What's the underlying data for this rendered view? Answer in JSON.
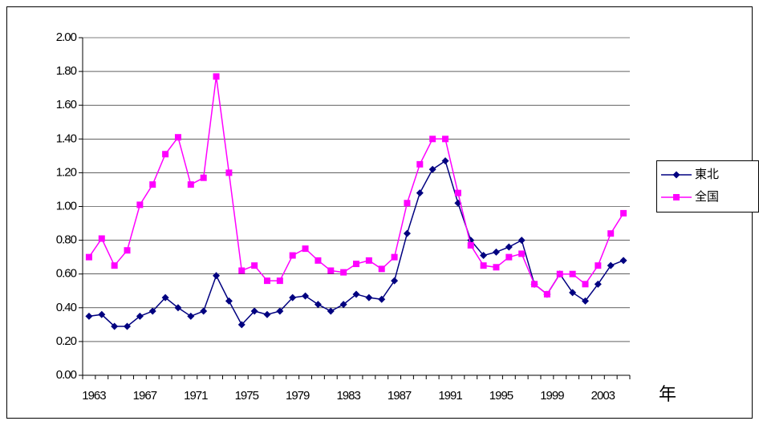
{
  "chart_data": {
    "type": "line",
    "x_label": "年",
    "categories": [
      "1963",
      null,
      null,
      null,
      "1967",
      null,
      null,
      null,
      "1971",
      null,
      null,
      null,
      "1975",
      null,
      null,
      null,
      "1979",
      null,
      null,
      null,
      "1983",
      null,
      null,
      null,
      "1987",
      null,
      null,
      null,
      "1991",
      null,
      null,
      null,
      "1995",
      null,
      null,
      null,
      "1999",
      null,
      null,
      null,
      "2003",
      null,
      null
    ],
    "series": [
      {
        "name": "東北",
        "color": "#000080",
        "marker": "diamond",
        "values": [
          0.35,
          0.36,
          0.29,
          0.29,
          0.35,
          0.38,
          0.46,
          0.4,
          0.35,
          0.38,
          0.59,
          0.44,
          0.3,
          0.38,
          0.36,
          0.38,
          0.46,
          0.47,
          0.42,
          0.38,
          0.42,
          0.48,
          0.46,
          0.45,
          0.56,
          0.84,
          1.08,
          1.22,
          1.27,
          1.02,
          0.8,
          0.71,
          0.73,
          0.76,
          0.8,
          0.54,
          0.48,
          0.6,
          0.49,
          0.44,
          0.54,
          0.65,
          0.68
        ]
      },
      {
        "name": "全国",
        "color": "#ff00ff",
        "marker": "square",
        "values": [
          0.7,
          0.81,
          0.65,
          0.74,
          1.01,
          1.13,
          1.31,
          1.41,
          1.13,
          1.17,
          1.77,
          1.2,
          0.62,
          0.65,
          0.56,
          0.56,
          0.71,
          0.75,
          0.68,
          0.62,
          0.61,
          0.66,
          0.68,
          0.63,
          0.7,
          1.02,
          1.25,
          1.4,
          1.4,
          1.08,
          0.77,
          0.65,
          0.64,
          0.7,
          0.72,
          0.54,
          0.48,
          0.6,
          0.6,
          0.54,
          0.65,
          0.84,
          0.96
        ]
      }
    ],
    "ylim": [
      0,
      2
    ],
    "yticks": [
      {
        "value": 0,
        "label": "0.00"
      },
      {
        "value": 0.2,
        "label": "0.20"
      },
      {
        "value": 0.4,
        "label": "0.40"
      },
      {
        "value": 0.6,
        "label": "0.60"
      },
      {
        "value": 0.8,
        "label": "0.80"
      },
      {
        "value": 1,
        "label": "1.00"
      },
      {
        "value": 1.2,
        "label": "1.20"
      },
      {
        "value": 1.4,
        "label": "1.40"
      },
      {
        "value": 1.6,
        "label": "1.60"
      },
      {
        "value": 1.8,
        "label": "1.80"
      },
      {
        "value": 2,
        "label": "2.00"
      }
    ],
    "grid": true,
    "legend": "right"
  }
}
